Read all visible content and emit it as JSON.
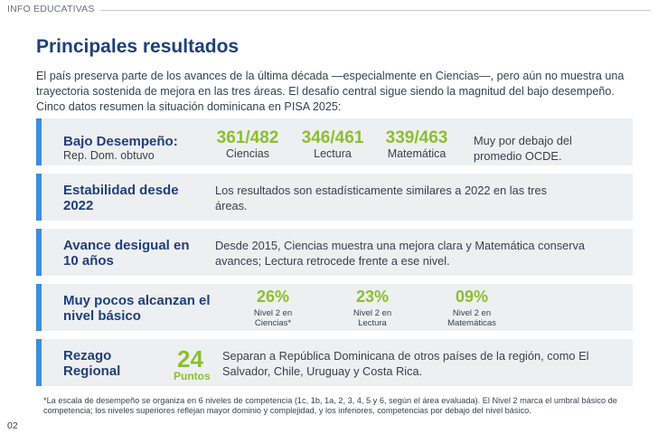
{
  "header": {
    "section": "INFO EDUCATIVAS"
  },
  "title": "Principales resultados",
  "intro": "El país preserva parte de los avances de la última década —especialmente en Ciencias—, pero aún no muestra una trayectoria sostenida de mejora en las tres áreas. El desafío central sigue siendo la magnitud del bajo desempeño. Cinco datos resumen la situación dominicana en PISA 2025:",
  "cards": {
    "bajo": {
      "label": "Bajo Desempeño:",
      "sublabel": "Rep. Dom. obtuvo",
      "scores": [
        {
          "value": "361/482",
          "label": "Ciencias"
        },
        {
          "value": "346/461",
          "label": "Lectura"
        },
        {
          "value": "339/463",
          "label": "Matemática"
        }
      ],
      "note": "Muy por debajo del promedio OCDE."
    },
    "estabilidad": {
      "label": "Estabilidad desde 2022",
      "text": "Los resultados son estadísticamente similares a 2022 en las tres áreas."
    },
    "avance": {
      "label": "Avance desigual en 10 años",
      "text": "Desde 2015, Ciencias muestra una mejora clara y Matemática conserva avances; Lectura retrocede frente a ese nivel."
    },
    "nivel": {
      "label": "Muy pocos alcanzan el nivel básico",
      "items": [
        {
          "value": "26%",
          "label": "Nivel 2 en Ciencias*"
        },
        {
          "value": "23%",
          "label": "Nivel 2 en Lectura"
        },
        {
          "value": "09%",
          "label": "Nivel 2 en Matemáticas"
        }
      ]
    },
    "rezago": {
      "label": "Rezago Regional",
      "number": "24",
      "unit": "Puntos",
      "text": "Separan a República Dominicana de otros países de la región, como El Salvador, Chile, Uruguay y Costa Rica."
    }
  },
  "footnote": "*La escala de desempeño se organiza en 6 niveles de competencia (1c, 1b, 1a, 2, 3, 4, 5 y 6, según el área evaluada). El Nivel 2 marca el umbral básico de competencia; los niveles superiores reflejan mayor dominio y complejidad, y los inferiores, competencias por debajo del nivel básico.",
  "page_number": "02",
  "colors": {
    "accent_blue": "#3d8ddc",
    "title_navy": "#1e3f7a",
    "value_green": "#8bbf2f",
    "card_bg": "#eeeff1"
  }
}
